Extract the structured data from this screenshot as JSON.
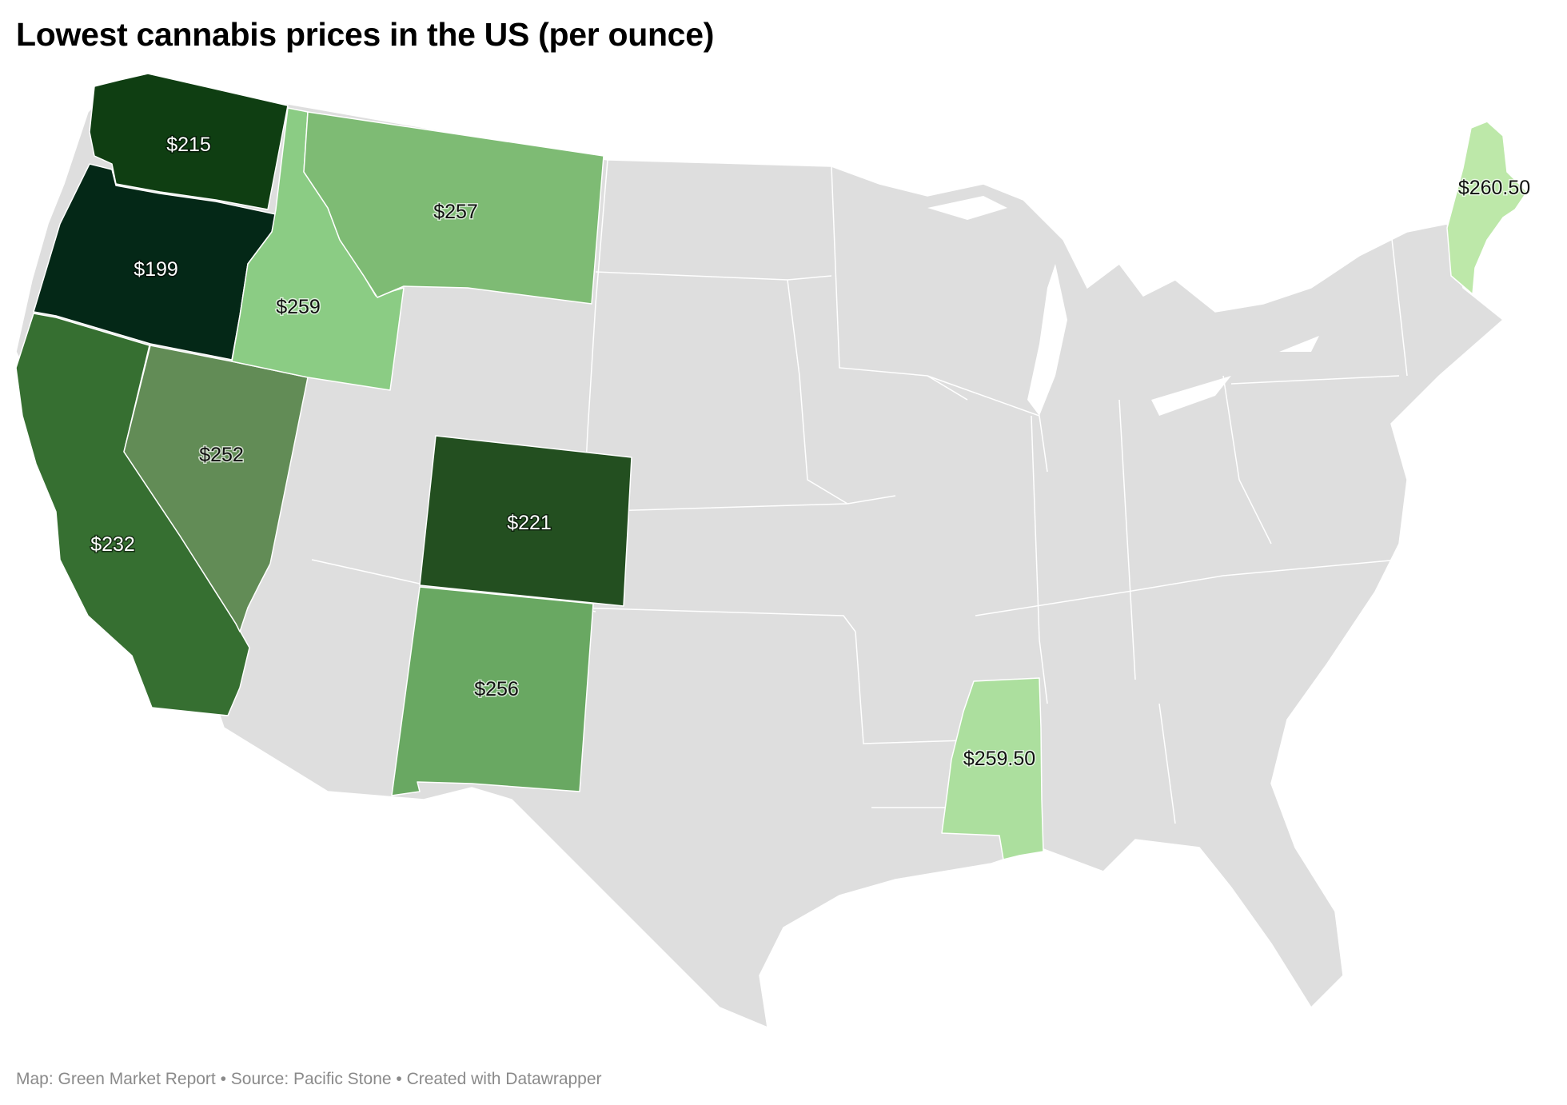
{
  "title": "Lowest cannabis prices in the US (per ounce)",
  "footer": "Map: Green Market Report • Source: Pacific Stone • Created with Datawrapper",
  "colors": {
    "no_data": "#dedede",
    "scale": [
      "#042817",
      "#0f3e12",
      "#234f20",
      "#366f31",
      "#628c56",
      "#69a862",
      "#7ebb74",
      "#8bcc84",
      "#acdf9e",
      "#bde8a9"
    ]
  },
  "states": [
    {
      "name": "Oregon",
      "price": "$199",
      "color": "#042817"
    },
    {
      "name": "Washington",
      "price": "$215",
      "color": "#0f3e12"
    },
    {
      "name": "Colorado",
      "price": "$221",
      "color": "#234f20"
    },
    {
      "name": "California",
      "price": "$232",
      "color": "#366f31"
    },
    {
      "name": "Nevada",
      "price": "$252",
      "color": "#628c56"
    },
    {
      "name": "New Mexico",
      "price": "$256",
      "color": "#69a862"
    },
    {
      "name": "Montana",
      "price": "$257",
      "color": "#7ebb74"
    },
    {
      "name": "Idaho",
      "price": "$259",
      "color": "#8bcc84"
    },
    {
      "name": "Mississippi",
      "price": "$259.50",
      "color": "#acdf9e"
    },
    {
      "name": "Maine",
      "price": "$260.50",
      "color": "#bde8a9"
    }
  ]
}
